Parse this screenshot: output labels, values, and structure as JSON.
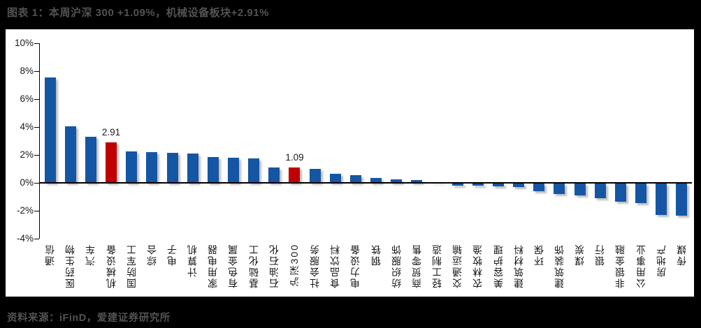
{
  "figure": {
    "title": "图表 1：本周沪深 300 +1.09%，机械设备板块+2.91%",
    "source": "资料来源：iFinD，爱建证券研究所"
  },
  "colors": {
    "page_background": "#000000",
    "panel_background": "#ffffff",
    "bar_blue": "#1456A4",
    "bar_red": "#C00000",
    "axis_line": "#000000",
    "caption_text": "#525252",
    "axis_text": "#1a1a1a"
  },
  "chart_data": {
    "type": "bar",
    "title": "图表 1：本周沪深 300 +1.09%，机械设备板块+2.91%",
    "xlabel": "",
    "ylabel": "",
    "categories": [
      "通信",
      "医药生物",
      "汽车",
      "机械设备",
      "国防军工",
      "综合",
      "电子",
      "计算机",
      "家用电器",
      "有色金属",
      "基础化工",
      "石油石化",
      "沪深300",
      "社会服务",
      "食品饮料",
      "电力设备",
      "钢铁",
      "纺织服饰",
      "商贸零售",
      "轻工制造",
      "交通运输",
      "农林牧渔",
      "美容护理",
      "建筑材料",
      "环保",
      "建筑装饰",
      "煤炭",
      "银行",
      "非银金融",
      "公用事业",
      "房地产",
      "传媒"
    ],
    "values": [
      7.56,
      4.03,
      3.28,
      2.91,
      2.25,
      2.21,
      2.13,
      2.08,
      1.86,
      1.8,
      1.77,
      1.1,
      1.09,
      1.02,
      0.67,
      0.55,
      0.34,
      0.23,
      0.21,
      0.06,
      -0.13,
      -0.17,
      -0.18,
      -0.26,
      -0.55,
      -0.75,
      -0.86,
      -1.04,
      -1.29,
      -1.41,
      -2.24,
      -2.32
    ],
    "highlight_indices": [
      3,
      12
    ],
    "annotations": [
      {
        "index": 3,
        "text": "2.91"
      },
      {
        "index": 12,
        "text": "1.09"
      }
    ],
    "ylim": [
      -4,
      10
    ],
    "ytick_labels": [
      "10%",
      "8%",
      "6%",
      "4%",
      "2%",
      "0%",
      "-2%",
      "-4%"
    ],
    "grid": false,
    "legend_position": "none"
  }
}
